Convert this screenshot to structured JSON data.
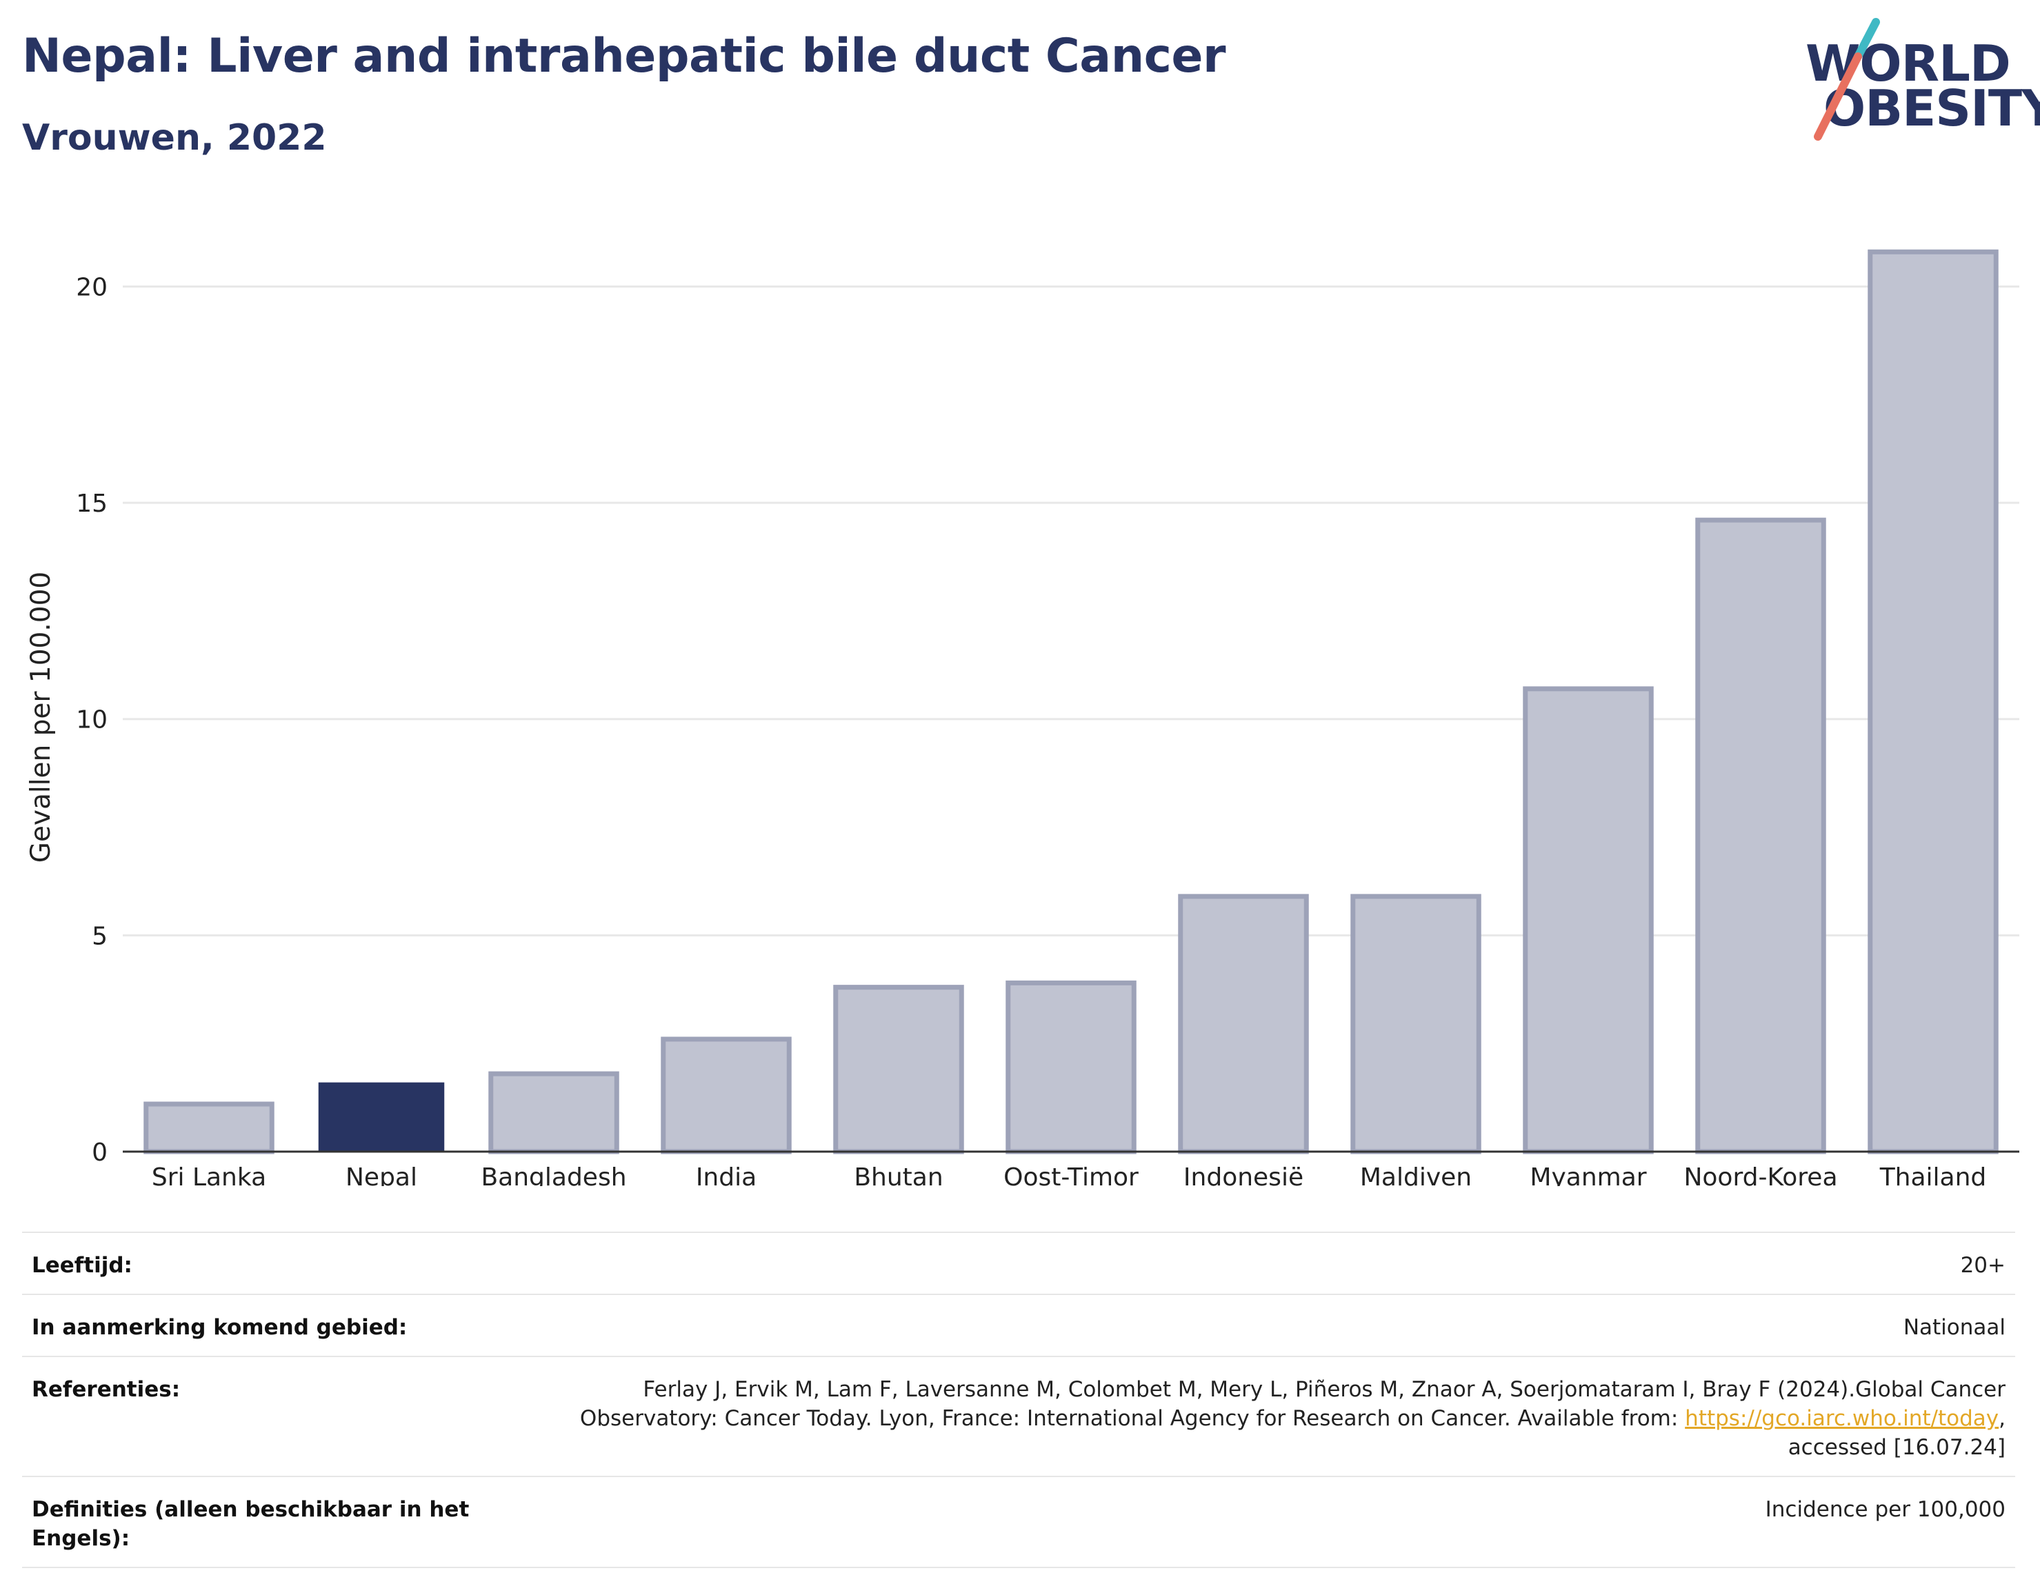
{
  "header": {
    "title": "Nepal: Liver and intrahepatic bile duct Cancer",
    "subtitle": "Vrouwen, 2022"
  },
  "logo": {
    "line1": "WORLD",
    "line2": "OBESITY",
    "colors": {
      "text": "#283462",
      "slash_teal": "#3fb9c4",
      "slash_coral": "#e8705f"
    }
  },
  "chart_data": {
    "type": "bar",
    "categories": [
      "Sri Lanka",
      "Nepal",
      "Bangladesh",
      "India",
      "Bhutan",
      "Oost-Timor",
      "Indonesië",
      "Maldiven",
      "Myanmar",
      "Noord-Korea",
      "Thailand"
    ],
    "values": [
      1.1,
      1.6,
      1.8,
      2.6,
      3.8,
      3.9,
      5.9,
      5.9,
      10.7,
      14.6,
      20.8
    ],
    "highlight": "Nepal",
    "ylabel": "Gevallen per 100.000",
    "yticks": [
      0,
      5,
      10,
      15,
      20
    ],
    "ylim": [
      0,
      22
    ],
    "grid": true,
    "colors": {
      "highlight": "#283462",
      "bar": "#c0c3d1",
      "bar_border": "#9da2b8",
      "grid": "#e8e8e8",
      "axis": "#333333"
    }
  },
  "meta": {
    "age_label": "Leeftijd:",
    "age_value": "20+",
    "area_label": "In aanmerking komend gebied:",
    "area_value": "Nationaal",
    "ref_label": "Referenties:",
    "ref_text_1": "Ferlay J, Ervik M, Lam F, Laversanne M, Colombet M, Mery L, Piñeros M, Znaor A, Soerjomataram I, Bray F (2024).Global Cancer Observatory: Cancer Today. Lyon, France: International Agency for Research on Cancer. Available from: ",
    "ref_link": "https://gco.iarc.who.int/today",
    "ref_text_2": ", accessed [16.07.24]",
    "def_label": "Definities (alleen beschikbaar in het Engels):",
    "def_value": "Incidence per 100,000"
  }
}
